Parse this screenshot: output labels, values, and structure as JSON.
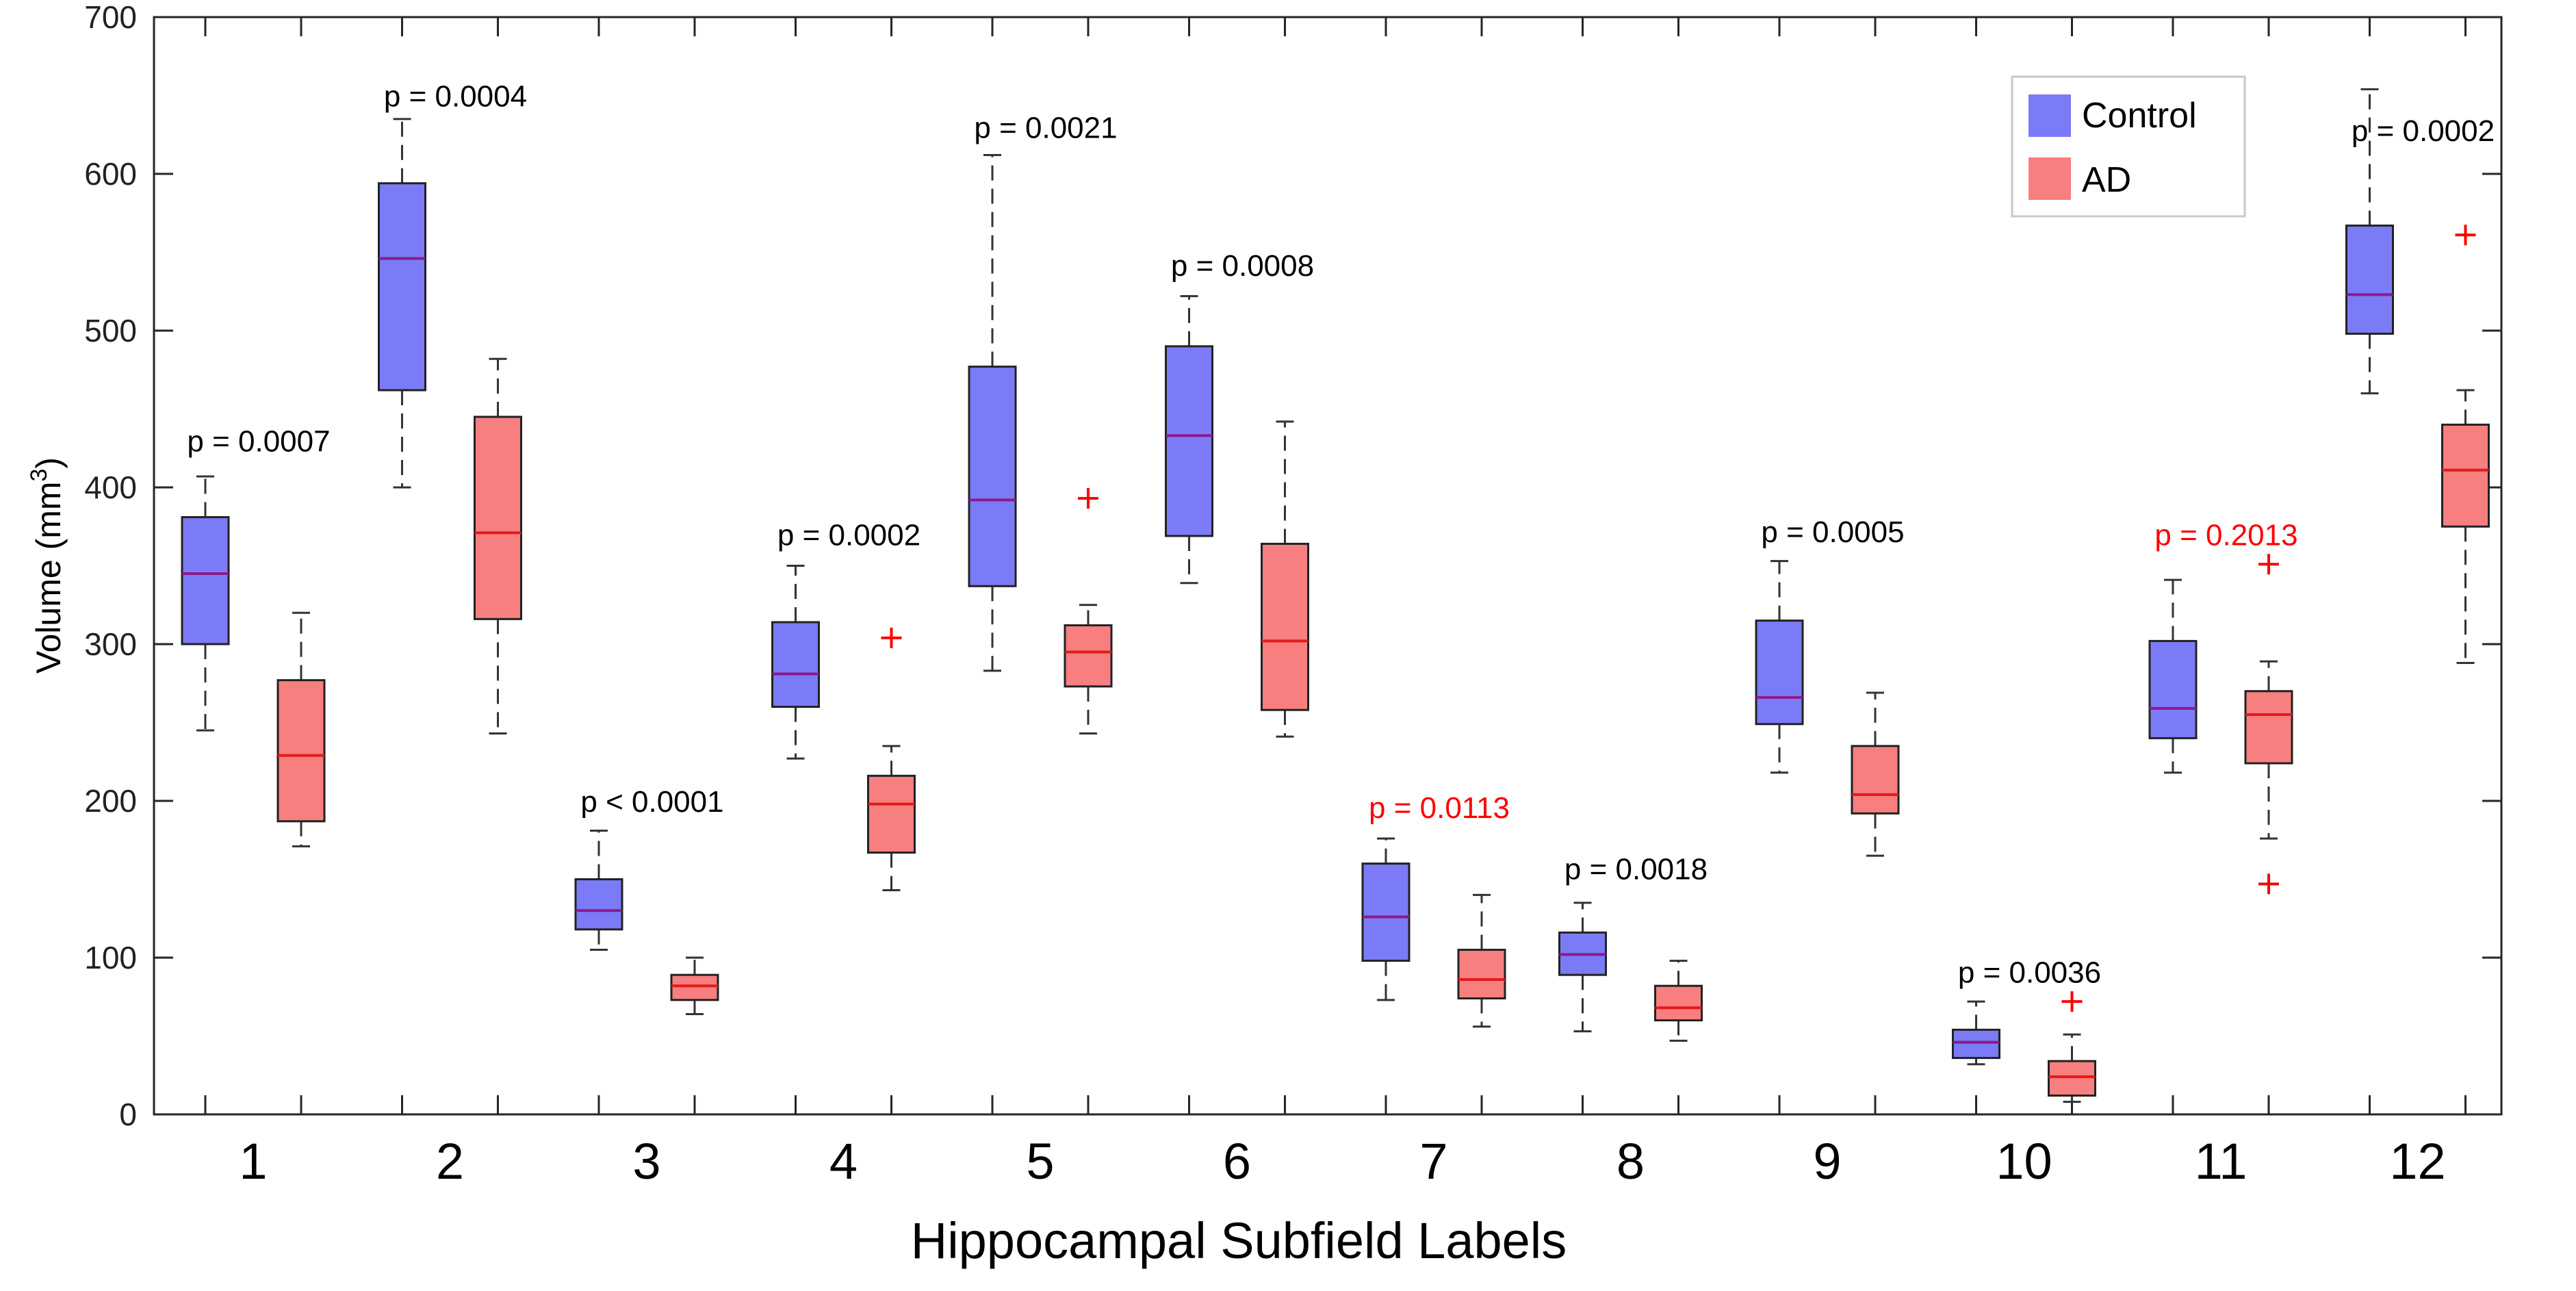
{
  "chart_data": {
    "type": "box",
    "title": "",
    "xlabel": "Hippocampal Subfield Labels",
    "ylabel": "Volume (mm",
    "ylabel_superscript": "3",
    "ylabel_close": ")",
    "ylim": [
      0,
      700
    ],
    "y_ticks": [
      "0",
      "100",
      "200",
      "300",
      "400",
      "500",
      "600",
      "700"
    ],
    "grid": false,
    "legend_position": "top-right",
    "colors": {
      "control_fill": "#7b7bf7",
      "ad_fill": "#f77f7f",
      "control_median": "#8b1a8b",
      "ad_median": "#e41a1a",
      "outlier": "#ff0000",
      "significant_text": "#000000",
      "nonsignificant_text": "#ff0000"
    },
    "categories": [
      "1",
      "2",
      "3",
      "4",
      "5",
      "6",
      "7",
      "8",
      "9",
      "10",
      "11",
      "12"
    ],
    "series": [
      {
        "name": "Control",
        "boxes": [
          {
            "whisker_low": 245,
            "q1": 300,
            "median": 345,
            "q3": 381,
            "whisker_high": 407,
            "outliers": []
          },
          {
            "whisker_low": 400,
            "q1": 462,
            "median": 546,
            "q3": 594,
            "whisker_high": 635,
            "outliers": []
          },
          {
            "whisker_low": 105,
            "q1": 118,
            "median": 130,
            "q3": 150,
            "whisker_high": 181,
            "outliers": []
          },
          {
            "whisker_low": 227,
            "q1": 260,
            "median": 281,
            "q3": 314,
            "whisker_high": 350,
            "outliers": []
          },
          {
            "whisker_low": 283,
            "q1": 337,
            "median": 392,
            "q3": 477,
            "whisker_high": 612,
            "outliers": []
          },
          {
            "whisker_low": 339,
            "q1": 369,
            "median": 433,
            "q3": 490,
            "whisker_high": 522,
            "outliers": []
          },
          {
            "whisker_low": 73,
            "q1": 98,
            "median": 126,
            "q3": 160,
            "whisker_high": 176,
            "outliers": []
          },
          {
            "whisker_low": 53,
            "q1": 89,
            "median": 102,
            "q3": 116,
            "whisker_high": 135,
            "outliers": []
          },
          {
            "whisker_low": 218,
            "q1": 249,
            "median": 266,
            "q3": 315,
            "whisker_high": 353,
            "outliers": []
          },
          {
            "whisker_low": 32,
            "q1": 36,
            "median": 46,
            "q3": 54,
            "whisker_high": 72,
            "outliers": []
          },
          {
            "whisker_low": 218,
            "q1": 240,
            "median": 259,
            "q3": 302,
            "whisker_high": 341,
            "outliers": []
          },
          {
            "whisker_low": 460,
            "q1": 498,
            "median": 523,
            "q3": 567,
            "whisker_high": 654,
            "outliers": []
          }
        ]
      },
      {
        "name": "AD",
        "boxes": [
          {
            "whisker_low": 171,
            "q1": 187,
            "median": 229,
            "q3": 277,
            "whisker_high": 320,
            "outliers": []
          },
          {
            "whisker_low": 243,
            "q1": 316,
            "median": 371,
            "q3": 445,
            "whisker_high": 482,
            "outliers": []
          },
          {
            "whisker_low": 64,
            "q1": 73,
            "median": 82,
            "q3": 89,
            "whisker_high": 100,
            "outliers": []
          },
          {
            "whisker_low": 143,
            "q1": 167,
            "median": 198,
            "q3": 216,
            "whisker_high": 235,
            "outliers": [
              304
            ]
          },
          {
            "whisker_low": 243,
            "q1": 273,
            "median": 295,
            "q3": 312,
            "whisker_high": 325,
            "outliers": [
              393
            ]
          },
          {
            "whisker_low": 241,
            "q1": 258,
            "median": 302,
            "q3": 364,
            "whisker_high": 442,
            "outliers": []
          },
          {
            "whisker_low": 56,
            "q1": 74,
            "median": 86,
            "q3": 105,
            "whisker_high": 140,
            "outliers": []
          },
          {
            "whisker_low": 47,
            "q1": 60,
            "median": 68,
            "q3": 82,
            "whisker_high": 98,
            "outliers": []
          },
          {
            "whisker_low": 165,
            "q1": 192,
            "median": 204,
            "q3": 235,
            "whisker_high": 269,
            "outliers": []
          },
          {
            "whisker_low": 8,
            "q1": 12,
            "median": 24,
            "q3": 34,
            "whisker_high": 51,
            "outliers": [
              72
            ]
          },
          {
            "whisker_low": 176,
            "q1": 224,
            "median": 255,
            "q3": 270,
            "whisker_high": 289,
            "outliers": [
              351,
              147
            ]
          },
          {
            "whisker_low": 288,
            "q1": 375,
            "median": 411,
            "q3": 440,
            "whisker_high": 462,
            "outliers": [
              561
            ]
          }
        ]
      }
    ],
    "annotations": [
      {
        "text": "p = 0.0007",
        "y": 430,
        "significant": true
      },
      {
        "text": "p = 0.0004",
        "y": 650,
        "significant": true
      },
      {
        "text": "p < 0.0001",
        "y": 200,
        "significant": true
      },
      {
        "text": "p = 0.0002",
        "y": 370,
        "significant": true
      },
      {
        "text": "p = 0.0021",
        "y": 630,
        "significant": true
      },
      {
        "text": "p = 0.0008",
        "y": 542,
        "significant": true
      },
      {
        "text": "p = 0.0113",
        "y": 196,
        "significant": false
      },
      {
        "text": "p = 0.0018",
        "y": 157,
        "significant": true
      },
      {
        "text": "p = 0.0005",
        "y": 372,
        "significant": true
      },
      {
        "text": "p = 0.0036",
        "y": 91,
        "significant": true
      },
      {
        "text": "p = 0.2013",
        "y": 370,
        "significant": false
      },
      {
        "text": "p = 0.0002",
        "y": 628,
        "significant": true
      }
    ]
  }
}
